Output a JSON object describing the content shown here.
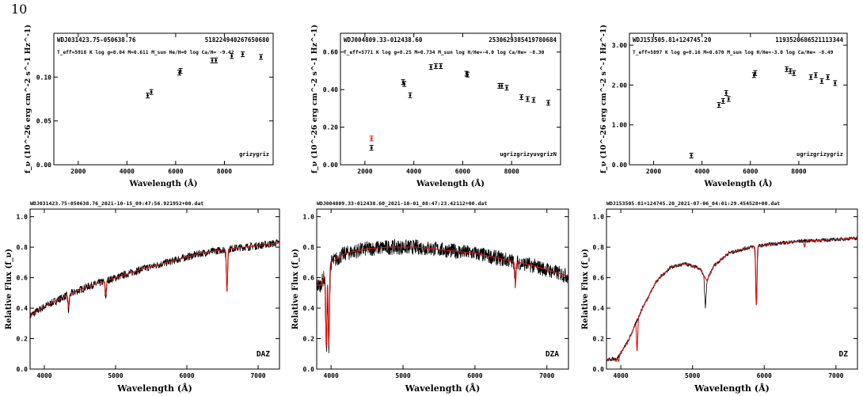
{
  "page_number": "10",
  "panels": [
    {
      "name": "WDJ031423.75-050638.76",
      "id": "518224940267650680",
      "params": "T_eff=5918 K log g=8.04 M=0.611 M_sun He/H=0 log Ca/H= -9.42",
      "filters": "grizygriz",
      "ylabel": "f_ν (10^-26 erg cm^-2 s^-1 Hz^-1)",
      "xlabel": "Wavelength (Å)"
    },
    {
      "name": "WDJ004809.33-012438.60",
      "id": "2530629385419780684",
      "params": "T_eff=5771 K log g=8.25 M=0.734 M_sun log H/He=-4.0 log Ca/He= -8.30",
      "filters": "ugrizgrizyuvgrizN",
      "ylabel": "f_ν (10^-26 erg cm^-2 s^-1 Hz^-1)",
      "xlabel": "Wavelength (Å)"
    },
    {
      "name": "WDJ153505.81+124745.20",
      "id": "1193520686521113344",
      "params": "T_eff=5897 K log g=8.16 M=0.670 M_sun log H/He=-3.0 log Ca/He= -8.49",
      "filters": "ugrizgrizygriz",
      "ylabel": "f_ν (10^-26 erg cm^-2 s^-1 Hz^-1)",
      "xlabel": "Wavelength (Å)"
    },
    {
      "title": "WDJ031423.75-050638.76_2021-10-15_09:47:56.921952+00.dat",
      "type_label": "DAZ",
      "ylabel": "Relative Flux (f_ν)",
      "xlabel": "Wavelength (Å)"
    },
    {
      "title": "WDJ004809.33-012438.60_2021-10-01_08:47:23.42112+00.dat",
      "type_label": "DZA",
      "ylabel": "Relative Flux (f_ν)",
      "xlabel": "Wavelength (Å)"
    },
    {
      "title": "WDJ153505.81+124745.20_2021-07-06_04:01:29.454528+00.dat",
      "type_label": "DZ",
      "ylabel": "Relative Flux (f_ν)",
      "xlabel": "Wavelength (Å)"
    }
  ],
  "chart_data": [
    {
      "type": "scatter",
      "xlim": [
        1000,
        10000
      ],
      "ylim": [
        0,
        0.15
      ],
      "xticks": [
        "2000",
        "4000",
        "6000",
        "8000"
      ],
      "yticks": [
        "0.00",
        "0.05",
        "0.10"
      ],
      "series": [
        {
          "color": "#000000",
          "x": [
            4850,
            5000,
            6150,
            6200,
            7500,
            7650,
            8300,
            8750,
            9500
          ],
          "y": [
            0.079,
            0.083,
            0.105,
            0.107,
            0.119,
            0.119,
            0.124,
            0.126,
            0.123
          ]
        }
      ]
    },
    {
      "type": "scatter",
      "xlim": [
        1000,
        10000
      ],
      "ylim": [
        0,
        0.7
      ],
      "xticks": [
        "2000",
        "4000",
        "6000",
        "8000"
      ],
      "yticks": [
        "0.00",
        "0.20",
        "0.40",
        "0.60"
      ],
      "series": [
        {
          "color": "#000000",
          "x": [
            2270,
            3560,
            3610,
            3850,
            4700,
            4900,
            5100,
            6150,
            6200,
            7500,
            7600,
            7800,
            8400,
            8650,
            8900,
            9500
          ],
          "y": [
            0.09,
            0.44,
            0.43,
            0.37,
            0.52,
            0.525,
            0.525,
            0.485,
            0.48,
            0.42,
            0.42,
            0.41,
            0.36,
            0.35,
            0.345,
            0.33
          ]
        },
        {
          "color": "#e02020",
          "x": [
            2270
          ],
          "y": [
            0.14
          ]
        }
      ]
    },
    {
      "type": "scatter",
      "xlim": [
        1000,
        10000
      ],
      "ylim": [
        0,
        3.3
      ],
      "xticks": [
        "2000",
        "4000",
        "6000",
        "8000"
      ],
      "yticks": [
        "0.00",
        "1.00",
        "2.00",
        "3.00"
      ],
      "series": [
        {
          "color": "#000000",
          "x": [
            3560,
            4700,
            4870,
            5000,
            5100,
            6150,
            6200,
            7500,
            7650,
            7800,
            8500,
            8700,
            8950,
            9200,
            9500
          ],
          "y": [
            0.23,
            1.5,
            1.6,
            1.8,
            1.65,
            2.25,
            2.3,
            2.4,
            2.35,
            2.3,
            2.2,
            2.25,
            2.1,
            2.2,
            2.05
          ]
        }
      ]
    },
    {
      "type": "line",
      "xlim": [
        3800,
        7300
      ],
      "ylim": [
        0,
        1.05
      ],
      "xticks": [
        "4000",
        "5000",
        "6000",
        "7000"
      ],
      "yticks": [
        "0.0",
        "0.2",
        "0.4",
        "0.6",
        "0.8",
        "1.0"
      ],
      "model": [
        [
          3800,
          0.35
        ],
        [
          4000,
          0.41
        ],
        [
          4300,
          0.48
        ],
        [
          4600,
          0.54
        ],
        [
          5000,
          0.6
        ],
        [
          5400,
          0.66
        ],
        [
          5800,
          0.71
        ],
        [
          6200,
          0.76
        ],
        [
          6600,
          0.79
        ],
        [
          7000,
          0.81
        ],
        [
          7300,
          0.83
        ]
      ],
      "lines": [
        [
          4340,
          0.41
        ],
        [
          4861,
          0.49
        ],
        [
          6563,
          0.51
        ]
      ],
      "observed_noise": 0.025,
      "observed_line_depths": [
        [
          4340,
          0.38
        ],
        [
          4861,
          0.47
        ],
        [
          6563,
          0.52
        ]
      ]
    },
    {
      "type": "line",
      "xlim": [
        3800,
        7300
      ],
      "ylim": [
        0,
        1.05
      ],
      "xticks": [
        "4000",
        "5000",
        "6000",
        "7000"
      ],
      "yticks": [
        "0.0",
        "0.2",
        "0.4",
        "0.6",
        "0.8",
        "1.0"
      ],
      "model": [
        [
          3850,
          0.55
        ],
        [
          4000,
          0.7
        ],
        [
          4200,
          0.76
        ],
        [
          4500,
          0.79
        ],
        [
          4800,
          0.8
        ],
        [
          5200,
          0.8
        ],
        [
          5600,
          0.78
        ],
        [
          6000,
          0.76
        ],
        [
          6400,
          0.72
        ],
        [
          6800,
          0.68
        ],
        [
          7300,
          0.61
        ]
      ],
      "lines": [
        [
          3934,
          0.15
        ],
        [
          3968,
          0.15
        ],
        [
          6563,
          0.56
        ]
      ],
      "observed_noise": 0.05,
      "observed_line_depths": [
        [
          3934,
          0.12
        ],
        [
          3968,
          0.12
        ],
        [
          6563,
          0.58
        ]
      ]
    },
    {
      "type": "line",
      "xlim": [
        3800,
        7300
      ],
      "ylim": [
        0,
        1.05
      ],
      "xticks": [
        "4000",
        "5000",
        "6000",
        "7000"
      ],
      "yticks": [
        "0.0",
        "0.2",
        "0.4",
        "0.6",
        "0.8",
        "1.0"
      ],
      "model": [
        [
          3800,
          0.06
        ],
        [
          3950,
          0.07
        ],
        [
          4100,
          0.18
        ],
        [
          4300,
          0.4
        ],
        [
          4500,
          0.58
        ],
        [
          4700,
          0.67
        ],
        [
          4900,
          0.69
        ],
        [
          5100,
          0.66
        ],
        [
          5200,
          0.58
        ],
        [
          5300,
          0.68
        ],
        [
          5500,
          0.76
        ],
        [
          5800,
          0.8
        ],
        [
          6100,
          0.82
        ],
        [
          6500,
          0.84
        ],
        [
          7000,
          0.85
        ],
        [
          7300,
          0.86
        ]
      ],
      "lines": [
        [
          3934,
          0.05
        ],
        [
          3968,
          0.05
        ],
        [
          4227,
          0.12
        ],
        [
          5890,
          0.42
        ],
        [
          6563,
          0.8
        ]
      ],
      "observed_noise": 0.012,
      "observed_line_depths": [
        [
          5180,
          0.41
        ],
        [
          5890,
          0.42
        ]
      ]
    }
  ]
}
